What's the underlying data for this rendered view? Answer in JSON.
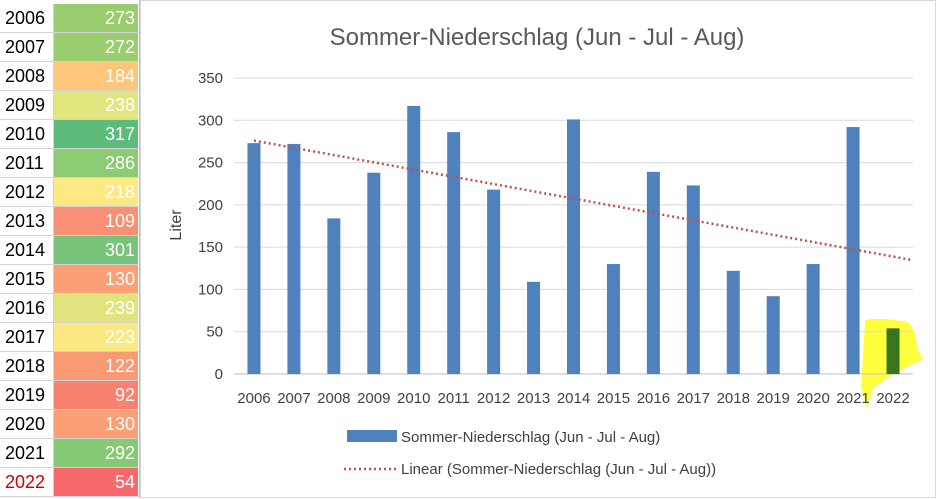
{
  "table": {
    "rows": [
      {
        "year": "2006",
        "value": "273",
        "color": "#9acd6f",
        "year_color": "#000000"
      },
      {
        "year": "2007",
        "value": "272",
        "color": "#9bce70",
        "year_color": "#000000"
      },
      {
        "year": "2008",
        "value": "184",
        "color": "#fec67a",
        "year_color": "#000000"
      },
      {
        "year": "2009",
        "value": "238",
        "color": "#e3e57e",
        "year_color": "#000000"
      },
      {
        "year": "2010",
        "value": "317",
        "color": "#5dbc7b",
        "year_color": "#000000"
      },
      {
        "year": "2011",
        "value": "286",
        "color": "#8ccb73",
        "year_color": "#000000"
      },
      {
        "year": "2012",
        "value": "218",
        "color": "#fde884",
        "year_color": "#000000"
      },
      {
        "year": "2013",
        "value": "109",
        "color": "#f98f74",
        "year_color": "#000000"
      },
      {
        "year": "2014",
        "value": "301",
        "color": "#77c47a",
        "year_color": "#000000"
      },
      {
        "year": "2015",
        "value": "130",
        "color": "#fba076",
        "year_color": "#000000"
      },
      {
        "year": "2016",
        "value": "239",
        "color": "#e1e47e",
        "year_color": "#000000"
      },
      {
        "year": "2017",
        "value": "223",
        "color": "#fbe883",
        "year_color": "#000000"
      },
      {
        "year": "2018",
        "value": "122",
        "color": "#fa9a75",
        "year_color": "#000000"
      },
      {
        "year": "2019",
        "value": "92",
        "color": "#f8816f",
        "year_color": "#000000"
      },
      {
        "year": "2020",
        "value": "130",
        "color": "#fba076",
        "year_color": "#000000"
      },
      {
        "year": "2021",
        "value": "292",
        "color": "#86c974",
        "year_color": "#000000"
      },
      {
        "year": "2022",
        "value": "54",
        "color": "#f8696b",
        "year_color": "#d00000"
      }
    ]
  },
  "chart_data": {
    "type": "bar",
    "title": "Sommer-Niederschlag (Jun - Jul - Aug)",
    "xlabel": "",
    "ylabel": "Liter",
    "ylim": [
      0,
      350
    ],
    "yticks": [
      "0",
      "50",
      "100",
      "150",
      "200",
      "250",
      "300",
      "350"
    ],
    "categories": [
      "2006",
      "2007",
      "2008",
      "2009",
      "2010",
      "2011",
      "2012",
      "2013",
      "2014",
      "2015",
      "2016",
      "2017",
      "2018",
      "2019",
      "2020",
      "2021",
      "2022"
    ],
    "series": [
      {
        "name": "Sommer-Niederschlag (Jun - Jul - Aug)",
        "values": [
          273,
          272,
          184,
          238,
          317,
          286,
          218,
          109,
          301,
          130,
          239,
          223,
          122,
          92,
          130,
          292,
          54
        ],
        "color": "#4f81bd",
        "highlight_color": "#38761d"
      }
    ],
    "trendline": {
      "name": "Linear (Sommer-Niederschlag (Jun - Jul - Aug))",
      "start": 276,
      "end": 135,
      "color": "#c0504d"
    },
    "highlight": {
      "category": "2022",
      "color": "#ffff33"
    },
    "grid": true,
    "legend": "bottom"
  }
}
